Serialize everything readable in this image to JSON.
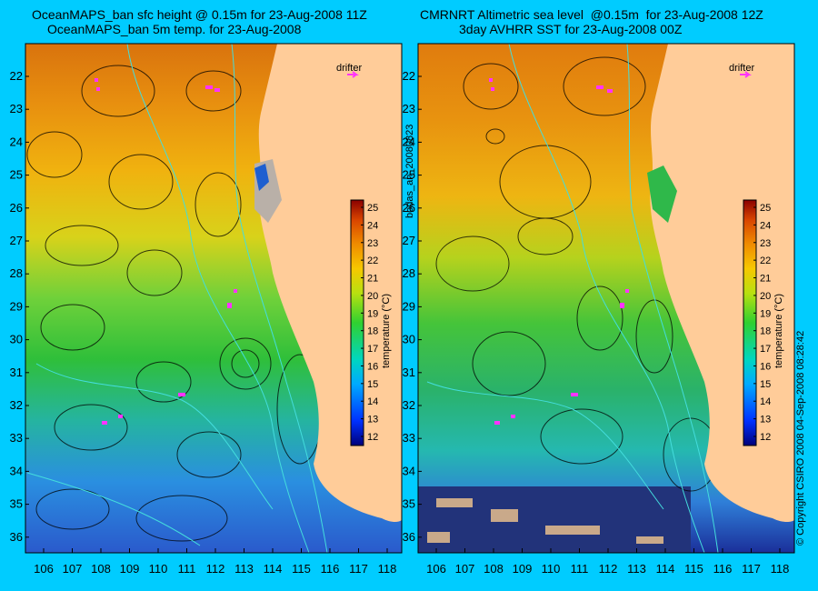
{
  "left": {
    "title_line1": "OceanMAPS_ban sfc height @ 0.15m for 23-Aug-2008 11Z",
    "title_line2": "OceanMAPS_ban 5m temp. for 23-Aug-2008",
    "drifter_label": "drifter",
    "colorbar_title": "temperature (°C)"
  },
  "right": {
    "title_line1": "CMRNRT Altimetric sea level  @0.15m  for 23-Aug-2008 12Z",
    "title_line2": "3day AVHRR SST for 23-Aug-2008 00Z",
    "drifter_label": "drifter",
    "colorbar_title": "temperature (°C)"
  },
  "side_labels": {
    "middle": "bodas_an_20080823",
    "right": "© Copyright CSIRO 2008    04-Sep-2008 08:28:42"
  },
  "latitude_ticks": [
    "22",
    "23",
    "24",
    "25",
    "26",
    "27",
    "28",
    "29",
    "30",
    "31",
    "32",
    "33",
    "34",
    "35",
    "36"
  ],
  "longitude_ticks": [
    "106",
    "107",
    "108",
    "109",
    "110",
    "111",
    "112",
    "113",
    "114",
    "115",
    "116",
    "117",
    "118"
  ],
  "colorbar_ticks": [
    "12",
    "13",
    "14",
    "15",
    "16",
    "17",
    "18",
    "19",
    "20",
    "21",
    "22",
    "23",
    "24",
    "25"
  ],
  "colors": {
    "background": "#00ccff",
    "land": "#ffcc99",
    "drifter": "#ff33ff",
    "bathymetry": "#44dddd"
  }
}
